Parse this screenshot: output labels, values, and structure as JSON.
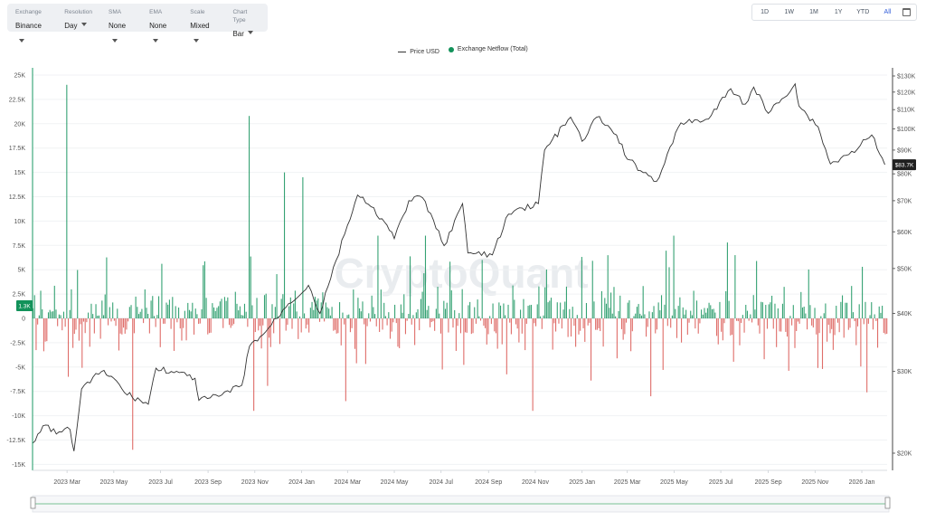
{
  "toolbar": {
    "controls": [
      {
        "label": "Exchange",
        "value": "Binance"
      },
      {
        "label": "Resolution",
        "value": "Day"
      },
      {
        "label": "SMA",
        "value": "None"
      },
      {
        "label": "EMA",
        "value": "None"
      },
      {
        "label": "Scale",
        "value": "Mixed"
      },
      {
        "label": "Chart Type",
        "value": "Bar"
      }
    ]
  },
  "ranges": [
    "1D",
    "1W",
    "1M",
    "1Y",
    "YTD",
    "All"
  ],
  "active_range": "All",
  "watermark": "CryptoQuant",
  "colors": {
    "inflow": "#12925a",
    "outflow": "#d9534f",
    "price": "#333333"
  },
  "chart_data": {
    "type": "bar",
    "title": "",
    "legend": {
      "placement": "top-center",
      "entries": [
        "Price USD",
        "Exchange Netflow (Total)"
      ]
    },
    "x_ticks": [
      "2023 Mar",
      "2023 May",
      "2023 Jul",
      "2023 Sep",
      "2023 Nov",
      "2024 Jan",
      "2024 Mar",
      "2024 May",
      "2024 Jul",
      "2024 Sep",
      "2024 Nov",
      "2025 Jan",
      "2025 Mar",
      "2025 May",
      "2025 Jul",
      "2025 Sep",
      "2025 Nov",
      "2026 Jan"
    ],
    "y_left": {
      "ticks": [
        "25K",
        "22.5K",
        "20K",
        "17.5K",
        "15K",
        "12.5K",
        "10K",
        "7.5K",
        "5K",
        "2.5K",
        "0",
        "-2.5K",
        "-5K",
        "-7.5K",
        "-10K",
        "-12.5K",
        "-15K"
      ],
      "range": [
        -15000,
        25000
      ]
    },
    "y_right": {
      "scale": "log",
      "ticks": [
        "$130K",
        "$120K",
        "$110K",
        "$100K",
        "$90K",
        "$80K",
        "$70K",
        "$60K",
        "$50K",
        "$40K",
        "$30K",
        "$20K"
      ],
      "range": [
        19000,
        135000
      ]
    },
    "current_netflow_label": "1.3K",
    "current_price_label": "$83.7K",
    "series": [
      {
        "name": "Price USD",
        "axis": "right",
        "points": [
          [
            "2023-01-15",
            21000
          ],
          [
            "2023-02-01",
            23000
          ],
          [
            "2023-02-15",
            22000
          ],
          [
            "2023-03-05",
            22500
          ],
          [
            "2023-03-10",
            20200
          ],
          [
            "2023-03-20",
            27500
          ],
          [
            "2023-04-15",
            30000
          ],
          [
            "2023-05-01",
            29000
          ],
          [
            "2023-05-15",
            27000
          ],
          [
            "2023-06-15",
            25500
          ],
          [
            "2023-06-25",
            30500
          ],
          [
            "2023-07-15",
            30000
          ],
          [
            "2023-08-15",
            29000
          ],
          [
            "2023-08-20",
            26000
          ],
          [
            "2023-09-15",
            26500
          ],
          [
            "2023-10-15",
            28000
          ],
          [
            "2023-10-25",
            34000
          ],
          [
            "2023-11-15",
            36500
          ],
          [
            "2023-12-15",
            42000
          ],
          [
            "2024-01-10",
            46000
          ],
          [
            "2024-01-25",
            40000
          ],
          [
            "2024-02-15",
            52000
          ],
          [
            "2024-03-01",
            62000
          ],
          [
            "2024-03-14",
            72000
          ],
          [
            "2024-04-15",
            64000
          ],
          [
            "2024-05-01",
            58000
          ],
          [
            "2024-05-20",
            70000
          ],
          [
            "2024-06-07",
            71000
          ],
          [
            "2024-07-05",
            56000
          ],
          [
            "2024-07-29",
            69000
          ],
          [
            "2024-08-05",
            54000
          ],
          [
            "2024-09-06",
            53500
          ],
          [
            "2024-09-27",
            65500
          ],
          [
            "2024-10-15",
            67500
          ],
          [
            "2024-11-05",
            69000
          ],
          [
            "2024-11-13",
            90000
          ],
          [
            "2024-12-17",
            106000
          ],
          [
            "2025-01-01",
            94000
          ],
          [
            "2025-01-20",
            106000
          ],
          [
            "2025-02-15",
            97000
          ],
          [
            "2025-03-01",
            86000
          ],
          [
            "2025-04-08",
            77000
          ],
          [
            "2025-05-10",
            103000
          ],
          [
            "2025-06-15",
            105000
          ],
          [
            "2025-07-14",
            122000
          ],
          [
            "2025-08-02",
            113000
          ],
          [
            "2025-08-13",
            123000
          ],
          [
            "2025-09-01",
            108000
          ],
          [
            "2025-10-06",
            125000
          ],
          [
            "2025-10-11",
            112000
          ],
          [
            "2025-11-05",
            101000
          ],
          [
            "2025-11-21",
            84000
          ],
          [
            "2025-12-15",
            88000
          ],
          [
            "2026-01-14",
            97000
          ],
          [
            "2026-01-31",
            83700
          ]
        ]
      },
      {
        "name": "Exchange Netflow (Total)",
        "axis": "left",
        "spikes": [
          [
            "2023-03-01",
            24000
          ],
          [
            "2023-03-02",
            -6000
          ],
          [
            "2023-05-25",
            -13500
          ],
          [
            "2023-10-25",
            20800
          ],
          [
            "2023-10-31",
            -9500
          ],
          [
            "2023-12-10",
            15000
          ],
          [
            "2024-01-03",
            14500
          ],
          [
            "2024-02-28",
            -8500
          ],
          [
            "2024-04-10",
            8500
          ],
          [
            "2024-06-10",
            8500
          ],
          [
            "2024-10-28",
            -9500
          ],
          [
            "2025-04-01",
            -8000
          ],
          [
            "2025-05-01",
            8500
          ],
          [
            "2025-07-10",
            7800
          ],
          [
            "2025-07-20",
            6500
          ],
          [
            "2025-11-10",
            -5200
          ],
          [
            "2026-01-01",
            5300
          ],
          [
            "2026-01-08",
            -7600
          ],
          [
            "2026-01-28",
            1300
          ]
        ]
      }
    ]
  }
}
